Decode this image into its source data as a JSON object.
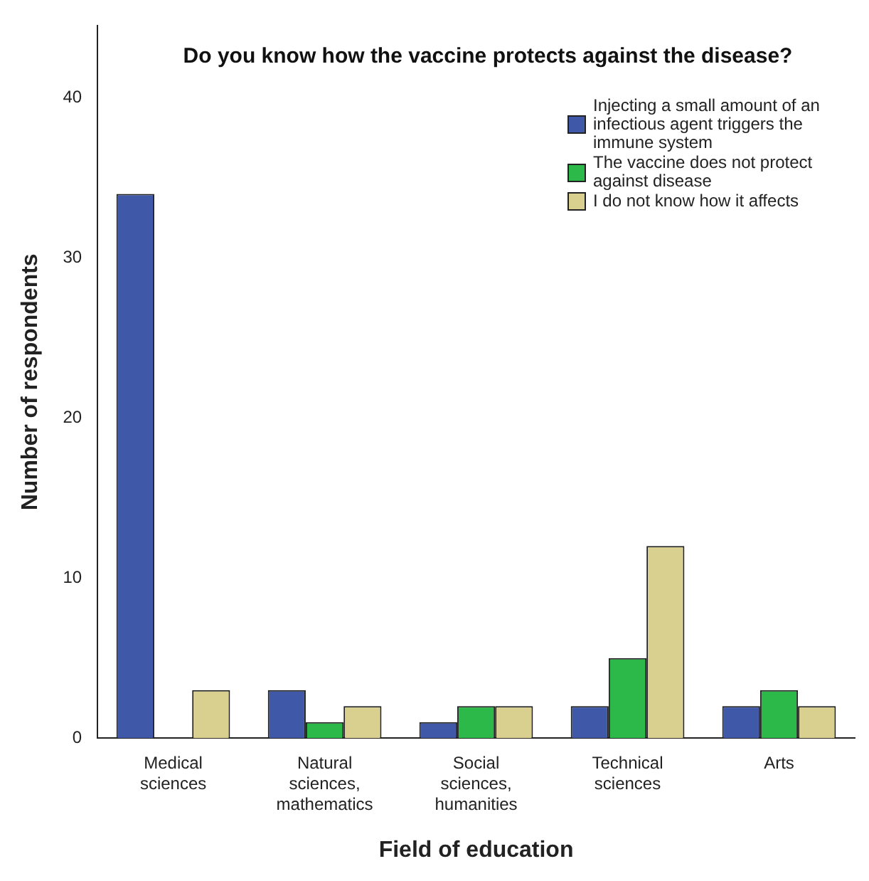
{
  "chart_data": {
    "type": "bar",
    "title": "Do you know how the vaccine protects against the disease?",
    "xlabel": "Field of education",
    "ylabel": "Number of respondents",
    "categories": [
      "Medical sciences",
      "Natural sciences, mathematics",
      "Social sciences, humanities",
      "Technical sciences",
      "Arts"
    ],
    "series": [
      {
        "name": "Injecting a small amount of an infectious agent triggers the immune system",
        "color": "#3f58a8",
        "values": [
          34,
          3,
          1,
          2,
          2
        ]
      },
      {
        "name": "The vaccine does not protect against disease",
        "color": "#2db84a",
        "values": [
          0,
          1,
          2,
          5,
          3
        ]
      },
      {
        "name": "I do not know how it affects",
        "color": "#d9cf8e",
        "values": [
          3,
          2,
          2,
          12,
          2
        ]
      }
    ],
    "ylim": [
      0,
      44.5
    ],
    "yticks": [
      0,
      10,
      20,
      30,
      40
    ],
    "grid": false,
    "legend": "top right"
  }
}
